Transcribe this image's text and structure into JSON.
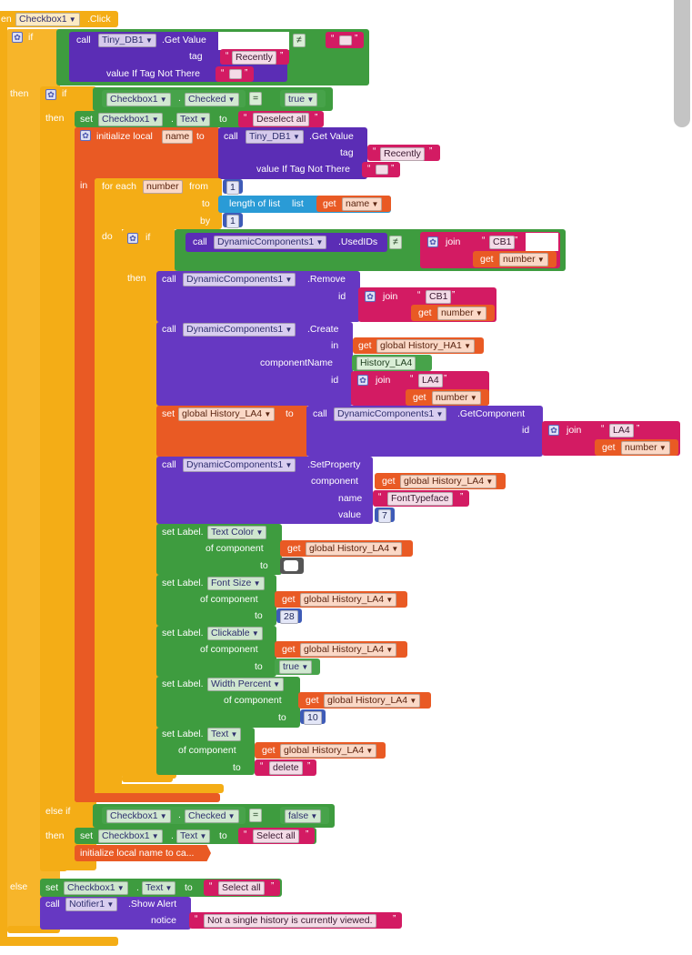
{
  "event": {
    "prefix": "en",
    "component": "Checkbox1",
    "suffix": ".Click"
  },
  "kw": {
    "if": "if",
    "then": "then",
    "else": "else",
    "else_if": "else if",
    "in": "in",
    "do": "do",
    "to": "to",
    "by": "by",
    "from": "from",
    "call": "call",
    "set": "set",
    "get": "get",
    "join": "join",
    "dot": ".",
    "cmp_eq": "=",
    "cmp_ne": "≠",
    "tag": "tag",
    "value_if_tag_not_there": "value If Tag Not There",
    "init_local": "initialize local",
    "for_each": "for each",
    "length_of_list": "length of list",
    "list": "list",
    "id": "id",
    "component_name": "componentName",
    "component": "component",
    "name": "name",
    "value": "value",
    "of_component": "of component",
    "set_label": "set Label.",
    "show_alert": ".Show Alert",
    "notice": "notice",
    "lq": "“",
    "rq": "”"
  },
  "blocks": {
    "tinydb": "Tiny_DB1",
    "get_value": ".Get Value",
    "recently": "Recently",
    "empty": "",
    "checkbox": "Checkbox1",
    "checked": "Checked",
    "text_prop": "Text",
    "true_val": "true",
    "false_val": "false",
    "deselect_all": "Deselect all",
    "select_all": "Select all",
    "local_name": "name",
    "loop_var": "number",
    "one": "1",
    "dyn": "DynamicComponents1",
    "used_ids": ".UsedIDs",
    "cb1": "CB1",
    "remove": ".Remove",
    "create": ".Create",
    "global_ha1": "global History_HA1",
    "history_la4": "History_LA4",
    "la4": "LA4",
    "global_la4": "global History_LA4",
    "get_component": ".GetComponent",
    "set_property": ".SetProperty",
    "font_typeface": "FontTypeface",
    "seven": "7",
    "text_color": "Text Color",
    "font_size": "Font Size",
    "size_val": "28",
    "clickable": "Clickable",
    "width_percent": "Width Percent",
    "width_val": "10",
    "delete": "delete",
    "collapsed_init": "initialize local name to ca...",
    "notifier": "Notifier1",
    "alert_text": "Not a single history is currently viewed."
  },
  "colors": {
    "control": "#f4ad16",
    "variables": "#e95a24",
    "procedures": "#5b2db5",
    "components": "#3e9c3f",
    "text": "#d31b63",
    "math": "#3e5bb7",
    "lists": "#2a9bd6"
  }
}
